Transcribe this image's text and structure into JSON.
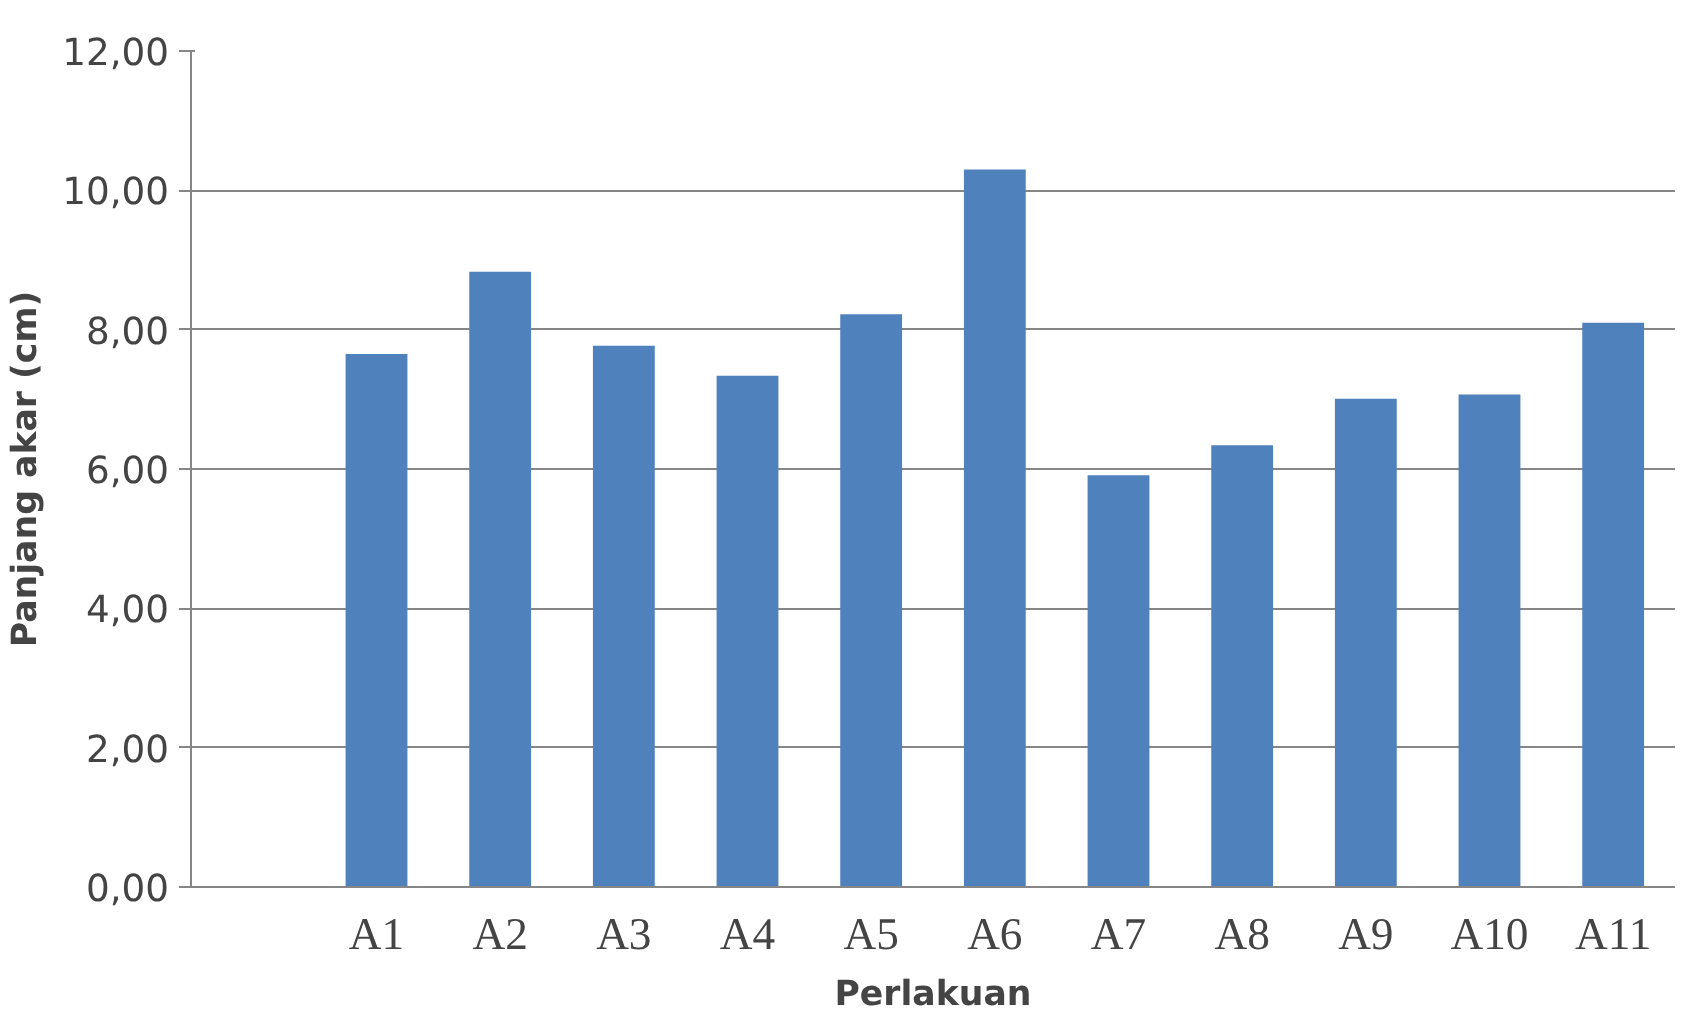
{
  "chart_data": {
    "type": "bar",
    "xlabel": "Perlakuan",
    "ylabel": "Panjang akar (cm)",
    "categories": [
      null,
      "A1",
      "A2",
      "A3",
      "A4",
      "A5",
      "A6",
      "A7",
      "A8",
      "A9",
      "A10",
      "A11"
    ],
    "values": [
      null,
      7.65,
      8.83,
      7.77,
      7.34,
      8.22,
      10.3,
      5.91,
      6.34,
      7.01,
      7.07,
      8.1
    ],
    "color": "#4f81bd",
    "ylim": [
      0,
      12
    ],
    "yticks": [
      {
        "value": 0,
        "label": "0,00"
      },
      {
        "value": 2,
        "label": "2,00"
      },
      {
        "value": 4,
        "label": "4,00"
      },
      {
        "value": 6,
        "label": "6,00"
      },
      {
        "value": 8,
        "label": "8,00"
      },
      {
        "value": 10,
        "label": "10,00"
      },
      {
        "value": 12,
        "label": "12,00"
      }
    ],
    "grid": "y"
  }
}
